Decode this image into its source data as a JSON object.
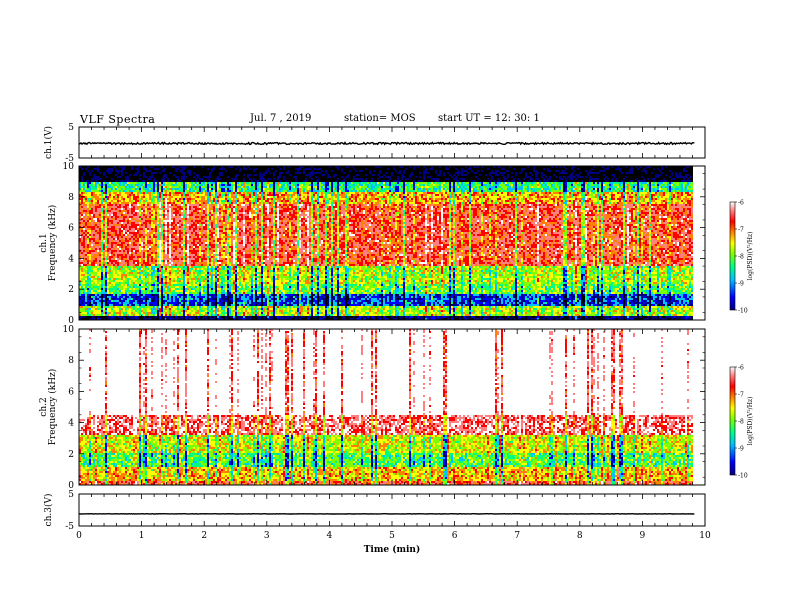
{
  "header": {
    "title": "VLF Spectra",
    "date": "Jul. 7 , 2019",
    "station": "station= MOS",
    "start_ut": "start UT =  12: 30: 1"
  },
  "colors": {
    "spectrogram_scale": [
      "#000080",
      "#0000ff",
      "#00c0ff",
      "#00ff80",
      "#80ff00",
      "#ffff00",
      "#ff8000",
      "#ff0000",
      "#ff8080",
      "#ffffff"
    ],
    "line": "#000000"
  },
  "chart_data": [
    {
      "id": "ch1-waveform",
      "type": "line",
      "ylabel": "ch.1(V)",
      "ylim": [
        -5,
        5
      ],
      "yticks": [
        5,
        -5
      ],
      "xlim": [
        0,
        10
      ],
      "series": [
        {
          "approx_level": -0.3,
          "noise_amplitude": 0.3
        }
      ]
    },
    {
      "id": "ch1-spectrogram",
      "type": "heatmap",
      "ylabel_top": "ch.1",
      "ylabel": "Frequency (kHz)",
      "ylim": [
        0,
        10
      ],
      "yticks": [
        0,
        2,
        4,
        6,
        8,
        10
      ],
      "xlim": [
        0,
        10
      ],
      "data_extent_x": [
        0,
        9.83
      ],
      "colorbar": {
        "label": "log(PSD)(V²/Hz)",
        "ticks": [
          -6,
          -7,
          -8,
          -9,
          -10
        ],
        "range": [
          -10,
          -6
        ]
      },
      "bands": [
        {
          "f": [
            0,
            0.3
          ],
          "level": -10
        },
        {
          "f": [
            0.3,
            0.9
          ],
          "level": -8.0
        },
        {
          "f": [
            0.9,
            1.7
          ],
          "level": -9.3
        },
        {
          "f": [
            1.7,
            2.3
          ],
          "level": -8.3
        },
        {
          "f": [
            2.3,
            3.5
          ],
          "level": -8.0
        },
        {
          "f": [
            3.5,
            7.5
          ],
          "level": -6.9
        },
        {
          "f": [
            7.5,
            8.3
          ],
          "level": -7.5
        },
        {
          "f": [
            8.3,
            8.9
          ],
          "level": -8.5
        },
        {
          "f": [
            8.9,
            10
          ],
          "level": -10.5
        }
      ]
    },
    {
      "id": "ch2-spectrogram",
      "type": "heatmap",
      "ylabel_top": "ch.2",
      "ylabel": "Frequency (kHz)",
      "ylim": [
        0,
        10
      ],
      "yticks": [
        0,
        2,
        4,
        6,
        8,
        10
      ],
      "xlim": [
        0,
        10
      ],
      "data_extent_x": [
        0,
        9.83
      ],
      "colorbar": {
        "label": "log(PSD)(V²/Hz)",
        "ticks": [
          -6,
          -7,
          -8,
          -9,
          -10
        ],
        "range": [
          -10,
          -6
        ]
      },
      "bands": [
        {
          "f": [
            0,
            0.3
          ],
          "level": -7.0
        },
        {
          "f": [
            0.3,
            1.2
          ],
          "level": -7.6
        },
        {
          "f": [
            1.2,
            2.0
          ],
          "level": -8.4
        },
        {
          "f": [
            2.0,
            3.2
          ],
          "level": -7.9
        },
        {
          "f": [
            3.2,
            4.5
          ],
          "level": -6.6
        },
        {
          "f": [
            4.5,
            10
          ],
          "level": -5.8
        }
      ]
    },
    {
      "id": "ch3-waveform",
      "type": "line",
      "ylabel": "ch.3(V)",
      "ylim": [
        -5,
        5
      ],
      "yticks": [
        5,
        -5
      ],
      "xlim": [
        0,
        10
      ],
      "xlabel": "Time (min)",
      "xticks": [
        0,
        1,
        2,
        3,
        4,
        5,
        6,
        7,
        8,
        9,
        10
      ],
      "series": [
        {
          "approx_level": -1.2,
          "noise_amplitude": 0.05
        }
      ]
    }
  ]
}
